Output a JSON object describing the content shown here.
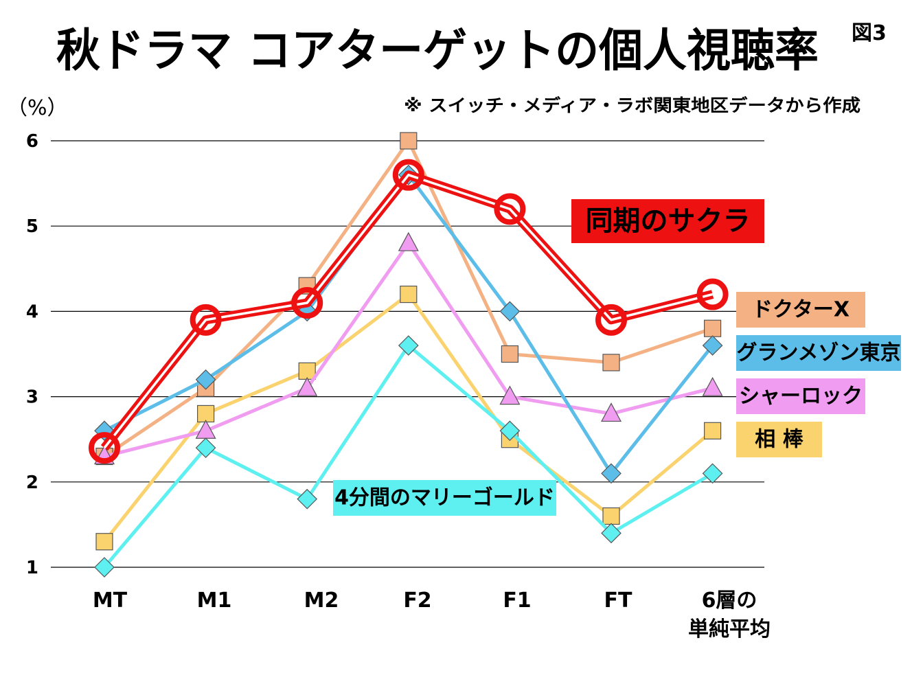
{
  "chart_data": {
    "type": "line",
    "title": "秋ドラマ コアターゲットの個人視聴率",
    "figure_number": "図3",
    "unit_label": "（%）",
    "source_note": "※ スイッチ・メディア・ラボ関東地区データから作成",
    "categories": [
      "MT",
      "M1",
      "M2",
      "F2",
      "F1",
      "FT",
      "6層の\n単純平均"
    ],
    "ylim": [
      1,
      6
    ],
    "yticks": [
      1,
      2,
      3,
      4,
      5,
      6
    ],
    "grid": true,
    "series": [
      {
        "name": "ドクターX",
        "values": [
          2.3,
          3.1,
          4.3,
          6.0,
          3.5,
          3.4,
          3.8
        ],
        "color": "#f4b183",
        "marker": "square",
        "label_bg": "#f4b183",
        "label_text_color": "#000000"
      },
      {
        "name": "グランメゾン東京",
        "values": [
          2.6,
          3.2,
          4.0,
          5.6,
          4.0,
          2.1,
          3.6
        ],
        "color": "#5bbde8",
        "marker": "diamond",
        "label_bg": "#5bbde8",
        "label_text_color": "#000000"
      },
      {
        "name": "シャーロック",
        "values": [
          2.3,
          2.6,
          3.1,
          4.8,
          3.0,
          2.8,
          3.1
        ],
        "color": "#f09cf0",
        "marker": "triangle",
        "label_bg": "#f09cf0",
        "label_text_color": "#000000"
      },
      {
        "name": "相 棒",
        "values": [
          1.3,
          2.8,
          3.3,
          4.2,
          2.5,
          1.6,
          2.6
        ],
        "color": "#fad26e",
        "marker": "square",
        "label_bg": "#fad26e",
        "label_text_color": "#000000"
      },
      {
        "name": "4分間のマリーゴールド",
        "values": [
          1.0,
          2.4,
          1.8,
          3.6,
          2.6,
          1.4,
          2.1
        ],
        "color": "#5ef0f0",
        "marker": "diamond",
        "label_bg": "#5ef0f0",
        "label_text_color": "#000000"
      },
      {
        "name": "同期のサクラ",
        "values": [
          2.4,
          3.9,
          4.1,
          5.6,
          5.2,
          3.9,
          4.2
        ],
        "color": "#ee1111",
        "marker": "ring",
        "label_bg": "#ee1111",
        "label_text_color": "#000000"
      }
    ]
  }
}
